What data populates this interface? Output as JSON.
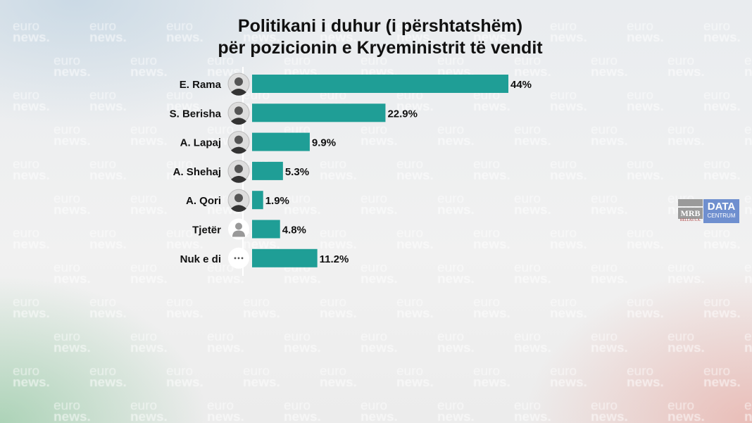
{
  "watermark": {
    "line1": "euro",
    "line2": "news."
  },
  "chart_data": {
    "type": "bar",
    "orientation": "horizontal",
    "title": "Politikani i duhur (i përshtatshëm) për pozicionin e Kryeministrit të vendit",
    "title_lines": [
      "Politikani i duhur (i përshtatshëm)",
      "për pozicionin e Kryeministrit të vendit"
    ],
    "categories": [
      "E. Rama",
      "S. Berisha",
      "A. Lapaj",
      "A. Shehaj",
      "A. Qori",
      "Tjetër",
      "Nuk e di"
    ],
    "values": [
      44,
      22.9,
      9.9,
      5.3,
      1.9,
      4.8,
      11.2
    ],
    "labels": [
      "44%",
      "22.9%",
      "9.9%",
      "5.3%",
      "1.9%",
      "4.8%",
      "11.2%"
    ],
    "icons": [
      "photo",
      "photo",
      "photo",
      "photo",
      "photo",
      "person-icon",
      "ellipsis-icon"
    ],
    "xlim": [
      0,
      44
    ],
    "grid": false,
    "bar_color": "#1f9e96"
  },
  "logo": {
    "mrb": "MRB",
    "hellas": "HELLAS S.A.",
    "data": "DATA",
    "centrum": "CENTRUM"
  }
}
